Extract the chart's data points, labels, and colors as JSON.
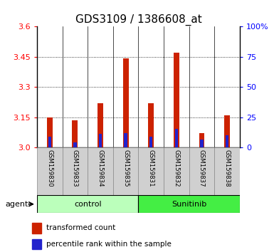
{
  "title": "GDS3109 / 1386608_at",
  "samples": [
    "GSM159830",
    "GSM159833",
    "GSM159834",
    "GSM159835",
    "GSM159831",
    "GSM159832",
    "GSM159837",
    "GSM159838"
  ],
  "red_values": [
    3.148,
    3.135,
    3.22,
    3.44,
    3.22,
    3.47,
    3.07,
    3.16
  ],
  "blue_values": [
    3.055,
    3.025,
    3.068,
    3.072,
    3.055,
    3.093,
    3.038,
    3.062
  ],
  "ymin": 3.0,
  "ymax": 3.6,
  "yticks_left": [
    3.0,
    3.15,
    3.3,
    3.45,
    3.6
  ],
  "yticks_right": [
    0,
    25,
    50,
    75,
    100
  ],
  "groups": [
    {
      "label": "control",
      "color": "#bbffbb"
    },
    {
      "label": "Sunitinib",
      "color": "#44ee44"
    }
  ],
  "red_color": "#cc2200",
  "blue_color": "#2222cc",
  "bg_color": "#d0d0d0",
  "plot_bg": "#ffffff",
  "agent_label": "agent",
  "legend_red": "transformed count",
  "legend_blue": "percentile rank within the sample",
  "title_fontsize": 11,
  "tick_fontsize": 8,
  "label_fontsize": 8
}
